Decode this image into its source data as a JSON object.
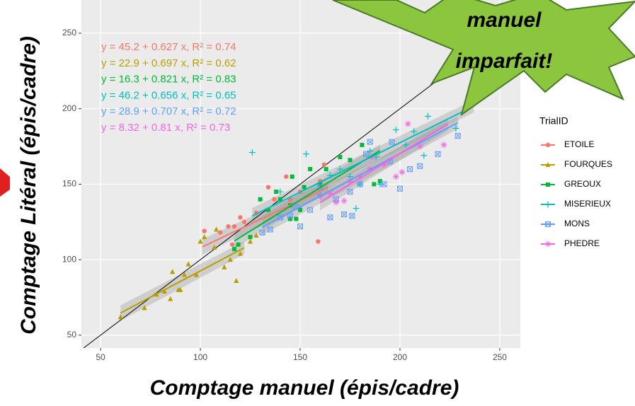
{
  "chart_data": {
    "type": "scatter",
    "x_label": "Comptage manuel (épis/cadre)",
    "y_label": "Comptage Litéral (épis/cadre)",
    "xlim": [
      40.4,
      260.3
    ],
    "ylim": [
      41.5,
      272
    ],
    "xticks": [
      50,
      100,
      150,
      200,
      250
    ],
    "yticks": [
      50,
      100,
      150,
      200,
      250
    ],
    "grid": true,
    "legend_title": "TrialID",
    "legend_position": "right",
    "reference_line": {
      "x": [
        41.5,
        260.3
      ],
      "y": [
        41.5,
        260.3
      ]
    },
    "callout": [
      "manuel",
      "imparfait!"
    ],
    "series": [
      {
        "name": "ETOILE",
        "color": "#F8766D",
        "shape": "circle",
        "equation": "y = 45.2 + 0.627 x, R² = 0.74",
        "x": [
          102,
          110,
          114,
          116,
          117,
          120,
          122,
          128,
          134,
          137,
          143,
          145,
          150,
          159,
          162,
          160
        ],
        "y": [
          119,
          118,
          122,
          110,
          122,
          128,
          125,
          131,
          148,
          140,
          155,
          140,
          145,
          112,
          163,
          152
        ],
        "fit": {
          "x": [
            101,
            164
          ],
          "y": [
            108.5,
            148.0
          ]
        }
      },
      {
        "name": "FOURQUES",
        "color": "#B79F00",
        "shape": "triangle",
        "equation": "y = 22.9 + 0.697 x, R² = 0.62",
        "x": [
          60,
          72,
          78,
          82,
          85,
          86,
          89,
          90,
          92,
          94,
          98,
          100,
          102,
          107,
          112,
          115,
          118,
          120,
          128,
          125,
          108
        ],
        "y": [
          62,
          68,
          77,
          79,
          74,
          92,
          80,
          80,
          90,
          97,
          90,
          112,
          115,
          108,
          95,
          100,
          86,
          104,
          116,
          112,
          120
        ],
        "fit": {
          "x": [
            60,
            122
          ],
          "y": [
            64.7,
            107.9
          ]
        }
      },
      {
        "name": "GREOUX",
        "color": "#00BA38",
        "shape": "square",
        "equation": "y = 16.3 + 0.821 x, R² = 0.83",
        "x": [
          117,
          119,
          125,
          130,
          134,
          138,
          140,
          145,
          146,
          150,
          152,
          155,
          160,
          163,
          170,
          175,
          181,
          187,
          190,
          148,
          145
        ],
        "y": [
          107,
          110,
          115,
          140,
          133,
          145,
          140,
          136,
          155,
          133,
          148,
          160,
          150,
          160,
          168,
          166,
          176,
          150,
          152,
          127,
          127
        ],
        "fit": {
          "x": [
            117,
            190
          ],
          "y": [
            112.4,
            172.3
          ]
        }
      },
      {
        "name": "MISERIEUX",
        "color": "#00BFC4",
        "shape": "plus",
        "equation": "y = 46.2 + 0.656 x, R² = 0.65",
        "x": [
          126,
          153,
          165,
          170,
          175,
          178,
          180,
          185,
          190,
          198,
          203,
          207,
          212,
          214,
          228,
          140,
          160,
          188
        ],
        "y": [
          171,
          170,
          156,
          160,
          155,
          134,
          150,
          172,
          150,
          186,
          176,
          185,
          169,
          195,
          187,
          145,
          143,
          168
        ],
        "fit": {
          "x": [
            126,
            237
          ],
          "y": [
            129.0,
            201.7
          ]
        }
      },
      {
        "name": "MONS",
        "color": "#619CFF",
        "shape": "boxx",
        "equation": "y = 28.9 + 0.707 x, R² = 0.72",
        "x": [
          131,
          135,
          140,
          145,
          148,
          150,
          155,
          160,
          165,
          168,
          172,
          175,
          176,
          180,
          183,
          185,
          192,
          195,
          200,
          205,
          210,
          219,
          229,
          196
        ],
        "y": [
          118,
          120,
          128,
          129,
          135,
          122,
          133,
          148,
          128,
          140,
          130,
          145,
          129,
          150,
          170,
          178,
          150,
          165,
          147,
          160,
          162,
          170,
          182,
          178
        ],
        "fit": {
          "x": [
            131,
            229
          ],
          "y": [
            121.5,
            190.8
          ]
        }
      },
      {
        "name": "PHEDRE",
        "color": "#F564E3",
        "shape": "asterisk",
        "equation": "y = 8.32 + 0.81 x, R² = 0.73",
        "x": [
          160,
          165,
          168,
          172,
          175,
          180,
          185,
          192,
          198,
          201,
          204,
          210,
          222,
          186
        ],
        "y": [
          142,
          144,
          138,
          139,
          152,
          155,
          160,
          163,
          155,
          158,
          190,
          175,
          176,
          168
        ],
        "fit": {
          "x": [
            160,
            224
          ],
          "y": [
            137.9,
            189.8
          ]
        }
      }
    ]
  }
}
